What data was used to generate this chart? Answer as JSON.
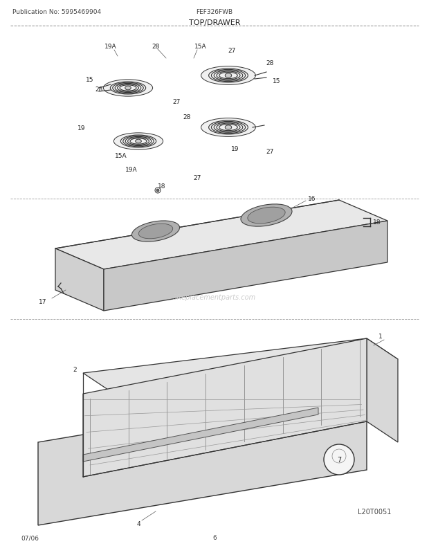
{
  "pub_no": "Publication No: 5995469904",
  "model": "FEF326FWB",
  "section": "TOP/DRAWER",
  "date": "07/06",
  "page": "6",
  "diagram_id": "L20T0051",
  "bg_color": "#ffffff",
  "line_color": "#000000",
  "text_color": "#333333",
  "watermark": "3Replacementparts.com",
  "parts": [
    {
      "id": "1",
      "label": "1"
    },
    {
      "id": "2",
      "label": "2"
    },
    {
      "id": "4",
      "label": "4"
    },
    {
      "id": "7",
      "label": "7"
    },
    {
      "id": "15",
      "label": "15"
    },
    {
      "id": "15A",
      "label": "15A"
    },
    {
      "id": "16",
      "label": "16"
    },
    {
      "id": "17",
      "label": "17"
    },
    {
      "id": "18",
      "label": "18"
    },
    {
      "id": "19",
      "label": "19"
    },
    {
      "id": "19A",
      "label": "19A"
    },
    {
      "id": "27",
      "label": "27"
    },
    {
      "id": "28",
      "label": "28"
    }
  ]
}
